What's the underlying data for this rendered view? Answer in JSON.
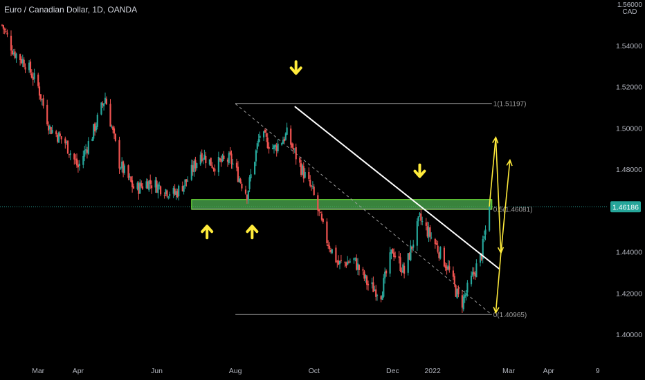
{
  "header": {
    "symbol_title": "Euro / Canadian Dollar, 1D, OANDA"
  },
  "currency_tag": {
    "top": "1.56000",
    "bottom": "CAD"
  },
  "colors": {
    "background": "#000000",
    "up": "#26a69a",
    "down": "#ef5350",
    "zone_fill": "#4caf50",
    "zone_border": "#7cff3c",
    "arrow": "#ffeb3b",
    "trendline": "#ffffff",
    "fib": "#9e9e9e",
    "price_tag": "#26a69a",
    "axis_text": "#b2b5be"
  },
  "chart_data": {
    "type": "candlestick",
    "title": "Euro / Canadian Dollar, 1D, OANDA",
    "xlabel": "",
    "ylabel": "",
    "x_tick_labels": [
      "Mar",
      "Apr",
      "Jun",
      "Aug",
      "Oct",
      "Dec",
      "2022",
      "Mar",
      "Apr",
      "9"
    ],
    "x_ticks": [
      {
        "label": "Mar",
        "date": "2021-03-01"
      },
      {
        "label": "Apr",
        "date": "2021-04-01"
      },
      {
        "label": "Jun",
        "date": "2021-06-01"
      },
      {
        "label": "Aug",
        "date": "2021-08-01"
      },
      {
        "label": "Oct",
        "date": "2021-10-01"
      },
      {
        "label": "Dec",
        "date": "2021-12-01"
      },
      {
        "label": "2022",
        "date": "2022-01-01"
      },
      {
        "label": "Mar",
        "date": "2022-03-01"
      },
      {
        "label": "Apr",
        "date": "2022-04-01"
      },
      {
        "label": "9",
        "date": "2022-05-09"
      }
    ],
    "y_tick_labels": [
      "1.54000",
      "1.52000",
      "1.50000",
      "1.48000",
      "1.44000",
      "1.42000",
      "1.40000"
    ],
    "ylim": [
      1.392,
      1.558
    ],
    "last_price": 1.46186,
    "last_price_label": "1.46186",
    "close_path": [
      {
        "date": "2021-02-01",
        "value": 1.55
      },
      {
        "date": "2021-02-10",
        "value": 1.537
      },
      {
        "date": "2021-02-20",
        "value": 1.531
      },
      {
        "date": "2021-03-01",
        "value": 1.52
      },
      {
        "date": "2021-03-10",
        "value": 1.5
      },
      {
        "date": "2021-03-22",
        "value": 1.493
      },
      {
        "date": "2021-04-01",
        "value": 1.481
      },
      {
        "date": "2021-04-12",
        "value": 1.497
      },
      {
        "date": "2021-04-22",
        "value": 1.515
      },
      {
        "date": "2021-05-03",
        "value": 1.483
      },
      {
        "date": "2021-05-15",
        "value": 1.47
      },
      {
        "date": "2021-05-25",
        "value": 1.474
      },
      {
        "date": "2021-06-05",
        "value": 1.471
      },
      {
        "date": "2021-06-15",
        "value": 1.468
      },
      {
        "date": "2021-06-25",
        "value": 1.475
      },
      {
        "date": "2021-07-05",
        "value": 1.488
      },
      {
        "date": "2021-07-15",
        "value": 1.482
      },
      {
        "date": "2021-07-28",
        "value": 1.485
      },
      {
        "date": "2021-08-10",
        "value": 1.468
      },
      {
        "date": "2021-08-20",
        "value": 1.497
      },
      {
        "date": "2021-08-31",
        "value": 1.49
      },
      {
        "date": "2021-09-10",
        "value": 1.497
      },
      {
        "date": "2021-09-20",
        "value": 1.482
      },
      {
        "date": "2021-09-30",
        "value": 1.469
      },
      {
        "date": "2021-10-10",
        "value": 1.447
      },
      {
        "date": "2021-10-20",
        "value": 1.434
      },
      {
        "date": "2021-11-01",
        "value": 1.436
      },
      {
        "date": "2021-11-12",
        "value": 1.424
      },
      {
        "date": "2021-11-22",
        "value": 1.42
      },
      {
        "date": "2021-12-01",
        "value": 1.441
      },
      {
        "date": "2021-12-10",
        "value": 1.43
      },
      {
        "date": "2021-12-22",
        "value": 1.456
      },
      {
        "date": "2022-01-03",
        "value": 1.444
      },
      {
        "date": "2022-01-13",
        "value": 1.432
      },
      {
        "date": "2022-01-23",
        "value": 1.414
      },
      {
        "date": "2022-02-01",
        "value": 1.428
      },
      {
        "date": "2022-02-08",
        "value": 1.439
      },
      {
        "date": "2022-02-14",
        "value": 1.46186
      }
    ],
    "support_resistance_zone": {
      "low": 1.4606,
      "high": 1.4654,
      "from": "2021-06-28",
      "to": "2022-02-16"
    },
    "trendline": {
      "from": {
        "date": "2021-09-16",
        "value": 1.5105
      },
      "to": {
        "date": "2022-02-22",
        "value": 1.4316
      }
    },
    "fib_dashed_line": {
      "from": {
        "date": "2021-08-01",
        "value": 1.5118
      },
      "to": {
        "date": "2022-02-15",
        "value": 1.41
      }
    },
    "fib_levels": [
      {
        "label": "1(1.51197)",
        "value": 1.51197,
        "from": "2021-08-01",
        "to": "2022-02-16"
      },
      {
        "label": "0.5(1.46081)",
        "value": 1.46081,
        "from": "2021-06-28",
        "to": "2022-02-16"
      },
      {
        "label": "0(1.40965)",
        "value": 1.40965,
        "from": "2021-08-01",
        "to": "2022-02-16"
      }
    ],
    "down_arrows": [
      {
        "date": "2021-09-17",
        "value": 1.5265
      },
      {
        "date": "2021-12-22",
        "value": 1.4765
      }
    ],
    "up_arrows": [
      {
        "date": "2021-07-10",
        "value": 1.4525
      },
      {
        "date": "2021-08-14",
        "value": 1.4525
      }
    ],
    "projection_lines": [
      {
        "from": {
          "date": "2022-02-14",
          "value": 1.462
        },
        "to": {
          "date": "2022-02-19",
          "value": 1.4955
        }
      },
      {
        "from": {
          "date": "2022-02-19",
          "value": 1.4955
        },
        "to": {
          "date": "2022-02-23",
          "value": 1.4395
        }
      },
      {
        "from": {
          "date": "2022-02-23",
          "value": 1.4395
        },
        "to": {
          "date": "2022-03-02",
          "value": 1.4845
        }
      },
      {
        "from": {
          "date": "2022-02-23",
          "value": 1.4395
        },
        "to": {
          "date": "2022-02-19",
          "value": 1.4105
        }
      }
    ]
  }
}
